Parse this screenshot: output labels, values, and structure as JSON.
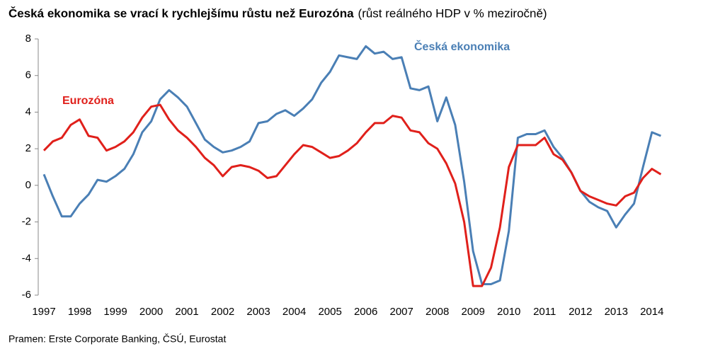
{
  "chart_data": {
    "type": "line",
    "title": "Česká ekonomika se vrací k rychlejšímu růstu než Eurozóna",
    "subtitle": "(růst reálného HDP v % meziročně)",
    "source": "Pramen: Erste Corporate Banking, ČSÚ, Eurostat",
    "x": [
      1997,
      1997.25,
      1997.5,
      1997.75,
      1998,
      1998.25,
      1998.5,
      1998.75,
      1999,
      1999.25,
      1999.5,
      1999.75,
      2000,
      2000.25,
      2000.5,
      2000.75,
      2001,
      2001.25,
      2001.5,
      2001.75,
      2002,
      2002.25,
      2002.5,
      2002.75,
      2003,
      2003.25,
      2003.5,
      2003.75,
      2004,
      2004.25,
      2004.5,
      2004.75,
      2005,
      2005.25,
      2005.5,
      2005.75,
      2006,
      2006.25,
      2006.5,
      2006.75,
      2007,
      2007.25,
      2007.5,
      2007.75,
      2008,
      2008.25,
      2008.5,
      2008.75,
      2009,
      2009.25,
      2009.5,
      2009.75,
      2010,
      2010.25,
      2010.5,
      2010.75,
      2011,
      2011.25,
      2011.5,
      2011.75,
      2012,
      2012.25,
      2012.5,
      2012.75,
      2013,
      2013.25,
      2013.5,
      2013.75,
      2014,
      2014.25
    ],
    "series": [
      {
        "name": "Česká ekonomika",
        "color": "#4a7fb5",
        "values": [
          0.6,
          -0.6,
          -1.7,
          -1.7,
          -1.0,
          -0.5,
          0.3,
          0.2,
          0.5,
          0.9,
          1.7,
          2.9,
          3.5,
          4.7,
          5.2,
          4.8,
          4.3,
          3.4,
          2.5,
          2.1,
          1.8,
          1.9,
          2.1,
          2.4,
          3.4,
          3.5,
          3.9,
          4.1,
          3.8,
          4.2,
          4.7,
          5.6,
          6.2,
          7.1,
          7.0,
          6.9,
          7.6,
          7.2,
          7.3,
          6.9,
          7.0,
          5.3,
          5.2,
          5.4,
          3.5,
          4.8,
          3.3,
          0.2,
          -3.6,
          -5.4,
          -5.4,
          -5.2,
          -2.5,
          2.6,
          2.8,
          2.8,
          3.0,
          2.1,
          1.5,
          0.7,
          -0.3,
          -0.9,
          -1.2,
          -1.4,
          -2.3,
          -1.6,
          -1.0,
          1.0,
          2.9,
          2.7
        ]
      },
      {
        "name": "Eurozóna",
        "color": "#e0201b",
        "values": [
          1.9,
          2.4,
          2.6,
          3.3,
          3.6,
          2.7,
          2.6,
          1.9,
          2.1,
          2.4,
          2.9,
          3.7,
          4.3,
          4.4,
          3.6,
          3.0,
          2.6,
          2.1,
          1.5,
          1.1,
          0.5,
          1.0,
          1.1,
          1.0,
          0.8,
          0.4,
          0.5,
          1.1,
          1.7,
          2.2,
          2.1,
          1.8,
          1.5,
          1.6,
          1.9,
          2.3,
          2.9,
          3.4,
          3.4,
          3.8,
          3.7,
          3.0,
          2.9,
          2.3,
          2.0,
          1.2,
          0.1,
          -2.0,
          -5.5,
          -5.5,
          -4.5,
          -2.3,
          1.0,
          2.2,
          2.2,
          2.2,
          2.6,
          1.7,
          1.4,
          0.7,
          -0.3,
          -0.6,
          -0.8,
          -1.0,
          -1.1,
          -0.6,
          -0.4,
          0.4,
          0.9,
          0.6
        ]
      }
    ],
    "xlim": [
      1997,
      2014.4
    ],
    "xticks": [
      1997,
      1998,
      1999,
      2000,
      2001,
      2002,
      2003,
      2004,
      2005,
      2006,
      2007,
      2008,
      2009,
      2010,
      2011,
      2012,
      2013,
      2014
    ],
    "ylim": [
      -6,
      8
    ],
    "yticks": [
      -6,
      -4,
      -2,
      0,
      2,
      4,
      6,
      8
    ],
    "grid": false
  }
}
